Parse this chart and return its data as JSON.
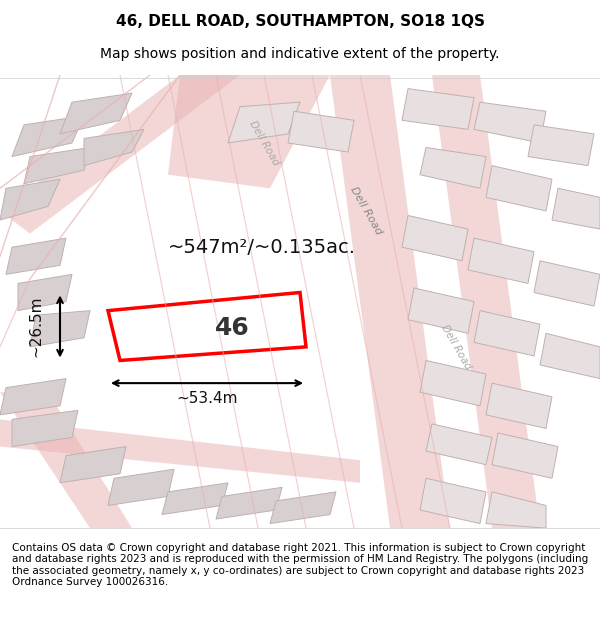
{
  "title": "46, DELL ROAD, SOUTHAMPTON, SO18 1QS",
  "subtitle": "Map shows position and indicative extent of the property.",
  "footer": "Contains OS data © Crown copyright and database right 2021. This information is subject to Crown copyright and database rights 2023 and is reproduced with the permission of HM Land Registry. The polygons (including the associated geometry, namely x, y co-ordinates) are subject to Crown copyright and database rights 2023 Ordnance Survey 100026316.",
  "map_bg": "#f5f0f0",
  "road_color": "#e8b0b0",
  "building_color": "#d8d0d0",
  "building_edge": "#c0b0b0",
  "plot_color": "#ff0000",
  "plot_fill": "none",
  "area_label": "~547m²/~0.135ac.",
  "number_label": "46",
  "width_label": "~53.4m",
  "height_label": "~26.5m",
  "title_fontsize": 11,
  "subtitle_fontsize": 10,
  "footer_fontsize": 7.5,
  "label_fontsize": 14,
  "dim_fontsize": 11
}
